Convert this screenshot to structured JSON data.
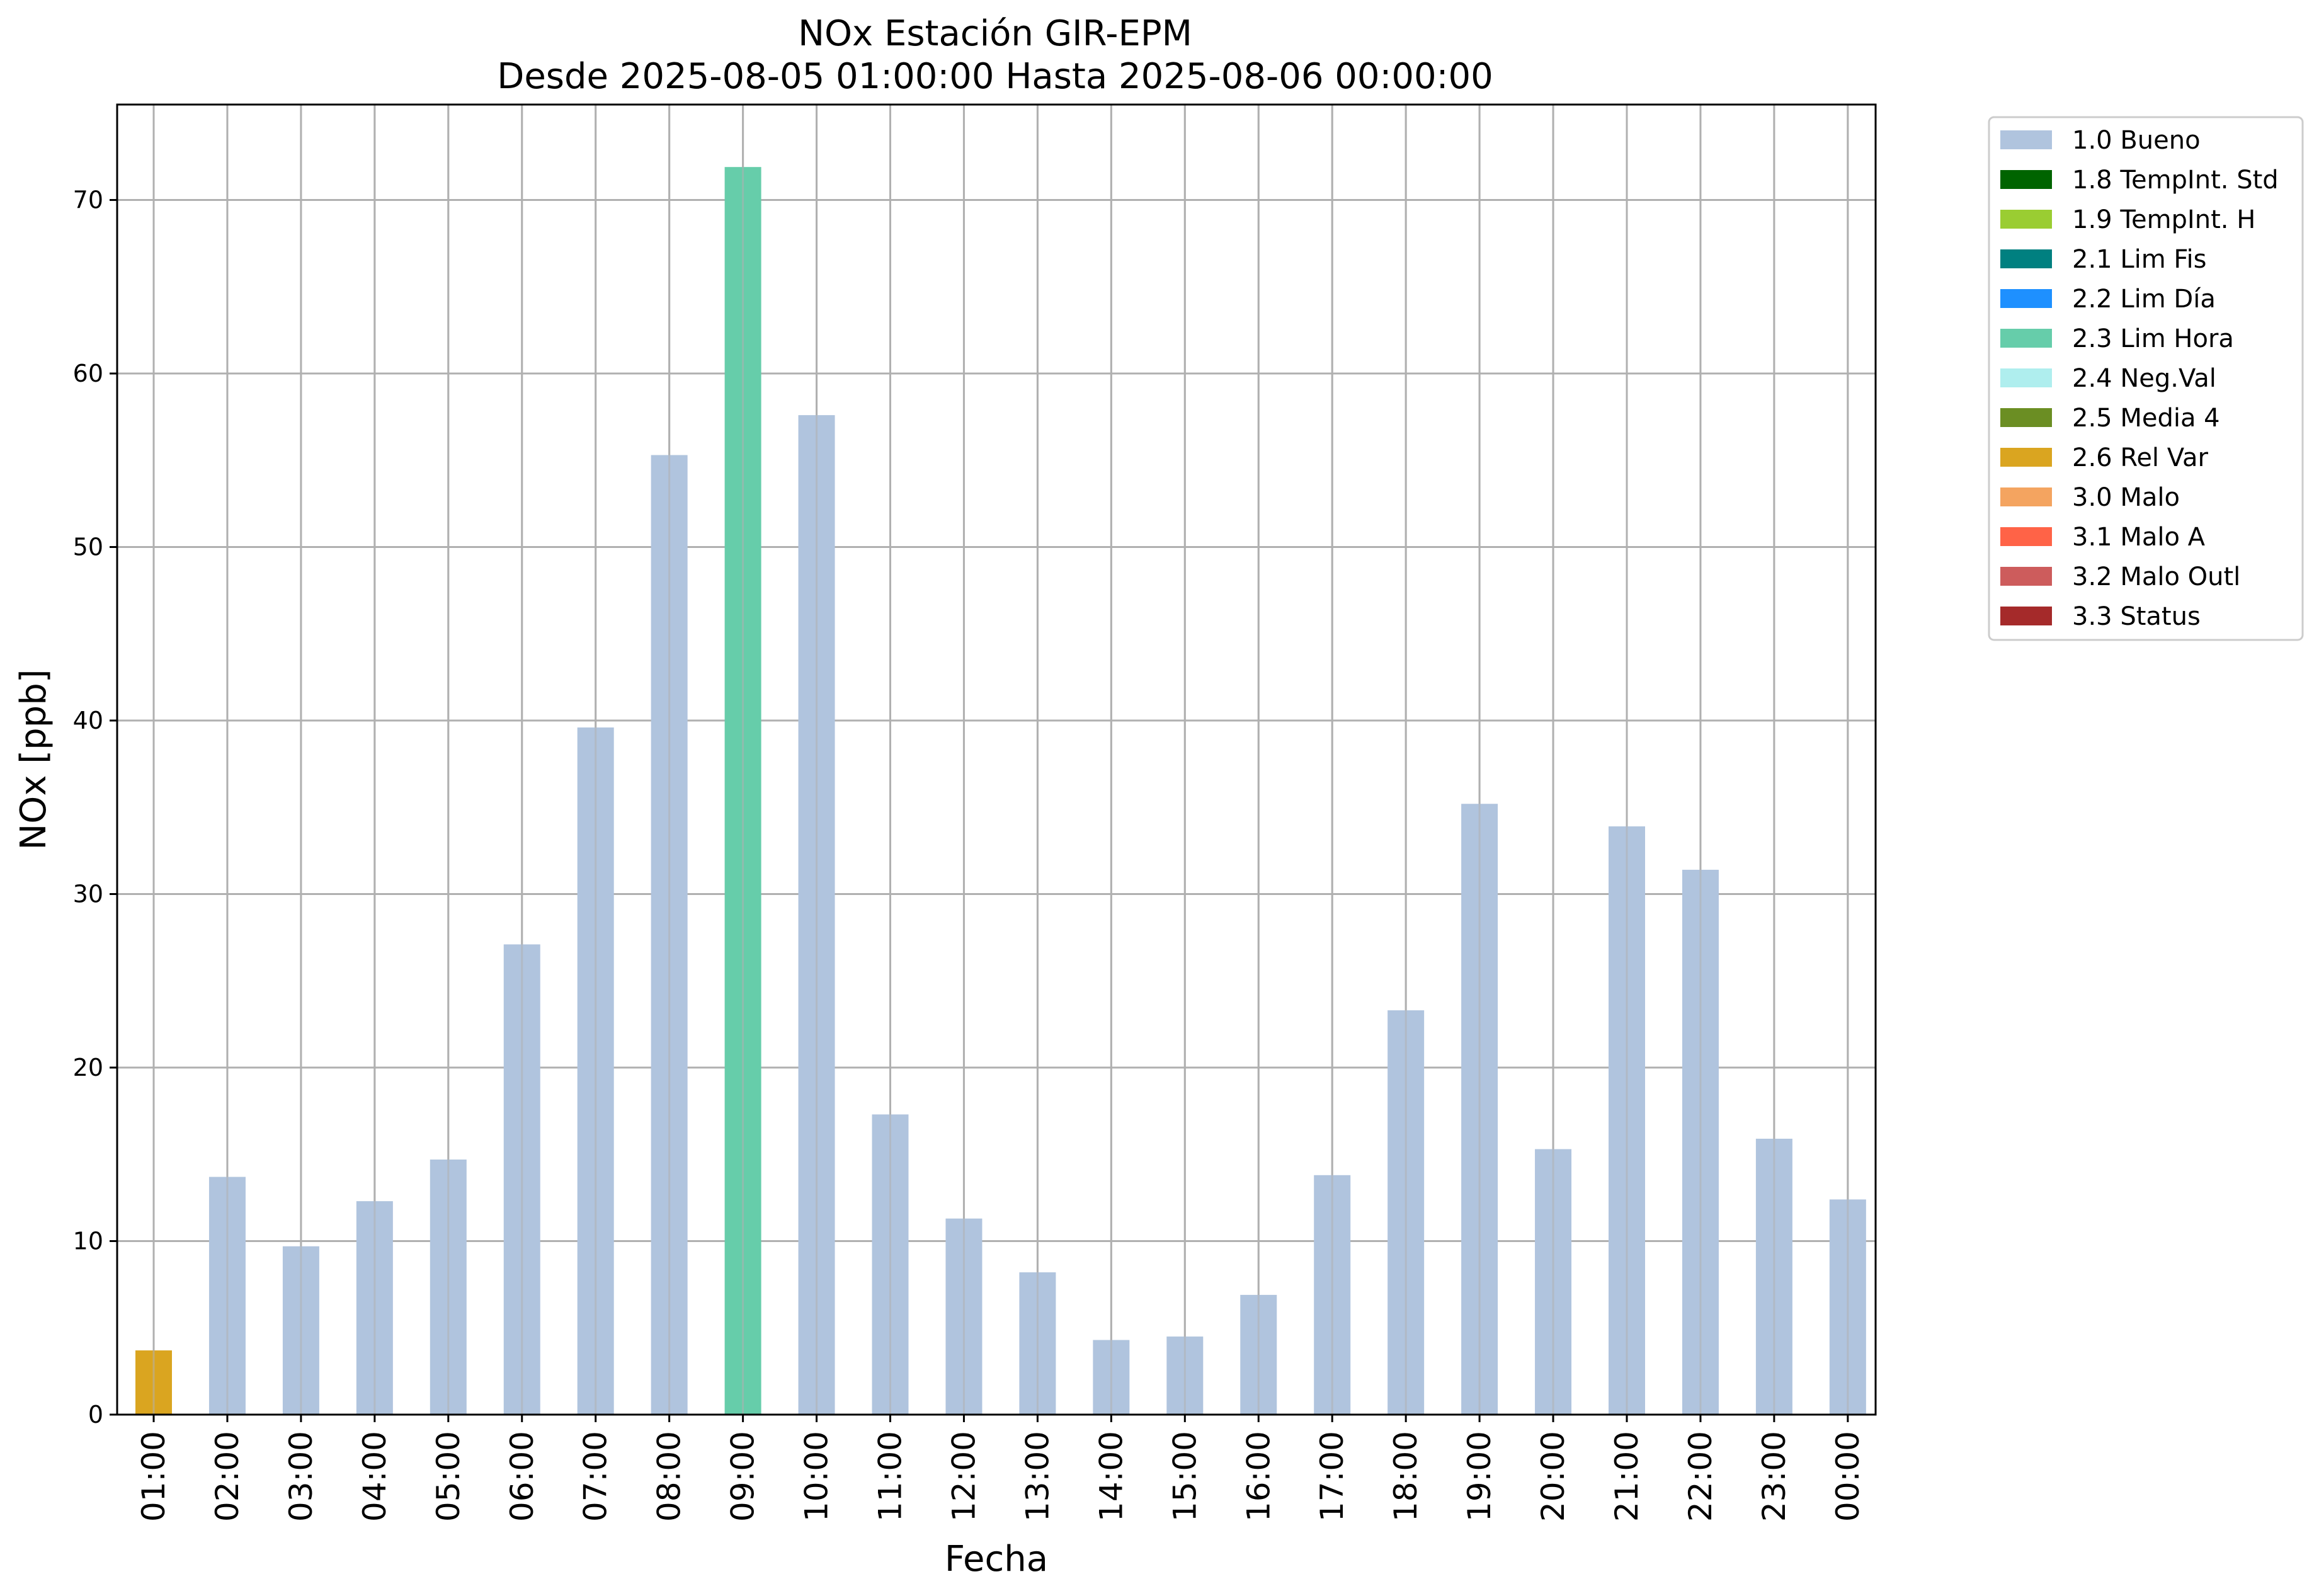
{
  "chart_data": {
    "type": "bar",
    "title": "NOx Estación GIR-EPM",
    "subtitle": "Desde 2025-08-05 01:00:00 Hasta 2025-08-06 00:00:00",
    "xlabel": "Fecha",
    "ylabel": "NOx [ppb]",
    "ylim": [
      0,
      75.5
    ],
    "yticks": [
      0,
      10,
      20,
      30,
      40,
      50,
      60,
      70
    ],
    "grid": true,
    "legend_position": "outside-top-right",
    "categories": [
      "01:00",
      "02:00",
      "03:00",
      "04:00",
      "05:00",
      "06:00",
      "07:00",
      "08:00",
      "09:00",
      "10:00",
      "11:00",
      "12:00",
      "13:00",
      "14:00",
      "15:00",
      "16:00",
      "17:00",
      "18:00",
      "19:00",
      "20:00",
      "21:00",
      "22:00",
      "23:00",
      "00:00"
    ],
    "values": [
      3.7,
      13.7,
      9.7,
      12.3,
      14.7,
      27.1,
      39.6,
      55.3,
      71.9,
      57.6,
      17.3,
      11.3,
      8.2,
      4.3,
      4.5,
      6.9,
      13.8,
      23.3,
      35.2,
      15.3,
      33.9,
      31.4,
      15.9,
      12.4
    ],
    "quality": [
      "2.6 Rel Var",
      "1.0 Bueno",
      "1.0 Bueno",
      "1.0 Bueno",
      "1.0 Bueno",
      "1.0 Bueno",
      "1.0 Bueno",
      "1.0 Bueno",
      "2.3 Lim Hora",
      "1.0 Bueno",
      "1.0 Bueno",
      "1.0 Bueno",
      "1.0 Bueno",
      "1.0 Bueno",
      "1.0 Bueno",
      "1.0 Bueno",
      "1.0 Bueno",
      "1.0 Bueno",
      "1.0 Bueno",
      "1.0 Bueno",
      "1.0 Bueno",
      "1.0 Bueno",
      "1.0 Bueno",
      "1.0 Bueno"
    ],
    "legend": [
      {
        "label": "1.0 Bueno",
        "color": "#b0c4de"
      },
      {
        "label": "1.8 TempInt. Std",
        "color": "#006400"
      },
      {
        "label": "1.9 TempInt. H",
        "color": "#9acd32"
      },
      {
        "label": "2.1 Lim Fis",
        "color": "#008080"
      },
      {
        "label": "2.2 Lim Día",
        "color": "#1e90ff"
      },
      {
        "label": "2.3 Lim Hora",
        "color": "#66cdaa"
      },
      {
        "label": "2.4 Neg.Val",
        "color": "#afeeee"
      },
      {
        "label": "2.5 Media 4",
        "color": "#6b8e23"
      },
      {
        "label": "2.6 Rel Var",
        "color": "#daa520"
      },
      {
        "label": "3.0 Malo",
        "color": "#f4a460"
      },
      {
        "label": "3.1 Malo A",
        "color": "#ff6347"
      },
      {
        "label": "3.2 Malo Outl",
        "color": "#cd5c5c"
      },
      {
        "label": "3.3 Status",
        "color": "#a52a2a"
      }
    ]
  }
}
